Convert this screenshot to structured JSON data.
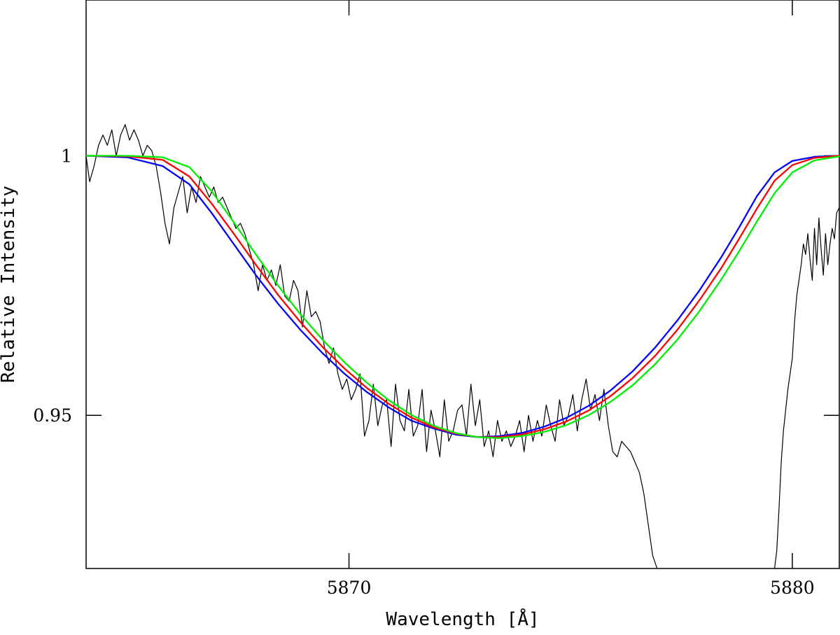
{
  "chart_data": {
    "type": "line",
    "title": "",
    "xlabel": "Wavelength [Å]",
    "ylabel": "Relative Intensity",
    "xlim": [
      5864.07,
      5881.06
    ],
    "ylim": [
      0.9205,
      1.03
    ],
    "x_ticks": [
      {
        "value": 5870,
        "label": "5870"
      },
      {
        "value": 5880,
        "label": "5880"
      }
    ],
    "y_ticks": [
      {
        "value": 1.0,
        "label": "1"
      },
      {
        "value": 0.95,
        "label": "0.95"
      }
    ],
    "grid": false,
    "legend": "none",
    "series": [
      {
        "color": "#000000",
        "line_width": 1.2,
        "points": [
          [
            5864.07,
            1.0
          ],
          [
            5864.15,
            0.995
          ],
          [
            5864.25,
            0.998
          ],
          [
            5864.35,
            1.002
          ],
          [
            5864.45,
            1.004
          ],
          [
            5864.55,
            1.002
          ],
          [
            5864.65,
            1.005
          ],
          [
            5864.75,
            1.0
          ],
          [
            5864.85,
            1.004
          ],
          [
            5864.95,
            1.006
          ],
          [
            5865.05,
            1.003
          ],
          [
            5865.15,
            1.005
          ],
          [
            5865.25,
            1.003
          ],
          [
            5865.35,
            1.0
          ],
          [
            5865.45,
            1.002
          ],
          [
            5865.55,
            1.001
          ],
          [
            5865.65,
            0.998
          ],
          [
            5865.75,
            0.993
          ],
          [
            5865.85,
            0.987
          ],
          [
            5865.95,
            0.983
          ],
          [
            5866.05,
            0.99
          ],
          [
            5866.15,
            0.993
          ],
          [
            5866.25,
            0.996
          ],
          [
            5866.35,
            0.989
          ],
          [
            5866.45,
            0.994
          ],
          [
            5866.55,
            0.991
          ],
          [
            5866.65,
            0.996
          ],
          [
            5866.75,
            0.994
          ],
          [
            5866.85,
            0.992
          ],
          [
            5866.95,
            0.994
          ],
          [
            5867.05,
            0.991
          ],
          [
            5867.15,
            0.992
          ],
          [
            5867.25,
            0.99
          ],
          [
            5867.35,
            0.988
          ],
          [
            5867.45,
            0.986
          ],
          [
            5867.55,
            0.987
          ],
          [
            5867.65,
            0.985
          ],
          [
            5867.75,
            0.982
          ],
          [
            5867.85,
            0.979
          ],
          [
            5867.95,
            0.974
          ],
          [
            5868.05,
            0.979
          ],
          [
            5868.15,
            0.976
          ],
          [
            5868.25,
            0.978
          ],
          [
            5868.35,
            0.975
          ],
          [
            5868.45,
            0.979
          ],
          [
            5868.55,
            0.973
          ],
          [
            5868.65,
            0.972
          ],
          [
            5868.75,
            0.976
          ],
          [
            5868.85,
            0.974
          ],
          [
            5868.95,
            0.967
          ],
          [
            5869.05,
            0.974
          ],
          [
            5869.15,
            0.969
          ],
          [
            5869.25,
            0.97
          ],
          [
            5869.35,
            0.968
          ],
          [
            5869.45,
            0.963
          ],
          [
            5869.55,
            0.96
          ],
          [
            5869.65,
            0.963
          ],
          [
            5869.75,
            0.958
          ],
          [
            5869.85,
            0.955
          ],
          [
            5869.95,
            0.957
          ],
          [
            5870.05,
            0.953
          ],
          [
            5870.15,
            0.955
          ],
          [
            5870.25,
            0.958
          ],
          [
            5870.35,
            0.946
          ],
          [
            5870.45,
            0.949
          ],
          [
            5870.55,
            0.956
          ],
          [
            5870.65,
            0.948
          ],
          [
            5870.75,
            0.952
          ],
          [
            5870.85,
            0.953
          ],
          [
            5870.95,
            0.944
          ],
          [
            5871.05,
            0.956
          ],
          [
            5871.15,
            0.949
          ],
          [
            5871.25,
            0.947
          ],
          [
            5871.35,
            0.955
          ],
          [
            5871.45,
            0.946
          ],
          [
            5871.55,
            0.948
          ],
          [
            5871.65,
            0.955
          ],
          [
            5871.75,
            0.943
          ],
          [
            5871.85,
            0.951
          ],
          [
            5871.95,
            0.947
          ],
          [
            5872.05,
            0.942
          ],
          [
            5872.15,
            0.953
          ],
          [
            5872.25,
            0.945
          ],
          [
            5872.35,
            0.947
          ],
          [
            5872.45,
            0.951
          ],
          [
            5872.55,
            0.952
          ],
          [
            5872.65,
            0.946
          ],
          [
            5872.75,
            0.956
          ],
          [
            5872.85,
            0.948
          ],
          [
            5872.95,
            0.953
          ],
          [
            5873.05,
            0.944
          ],
          [
            5873.15,
            0.947
          ],
          [
            5873.25,
            0.942
          ],
          [
            5873.35,
            0.949
          ],
          [
            5873.45,
            0.945
          ],
          [
            5873.55,
            0.947
          ],
          [
            5873.65,
            0.944
          ],
          [
            5873.75,
            0.946
          ],
          [
            5873.85,
            0.949
          ],
          [
            5873.95,
            0.943
          ],
          [
            5874.05,
            0.95
          ],
          [
            5874.15,
            0.945
          ],
          [
            5874.25,
            0.949
          ],
          [
            5874.35,
            0.946
          ],
          [
            5874.45,
            0.952
          ],
          [
            5874.55,
            0.948
          ],
          [
            5874.65,
            0.945
          ],
          [
            5874.75,
            0.953
          ],
          [
            5874.85,
            0.948
          ],
          [
            5874.95,
            0.95
          ],
          [
            5875.05,
            0.954
          ],
          [
            5875.15,
            0.947
          ],
          [
            5875.25,
            0.953
          ],
          [
            5875.35,
            0.957
          ],
          [
            5875.45,
            0.951
          ],
          [
            5875.55,
            0.954
          ],
          [
            5875.65,
            0.949
          ],
          [
            5875.75,
            0.955
          ],
          [
            5875.85,
            0.948
          ],
          [
            5875.95,
            0.943
          ],
          [
            5876.05,
            0.942
          ],
          [
            5876.15,
            0.945
          ],
          [
            5876.25,
            0.944
          ],
          [
            5876.35,
            0.943
          ],
          [
            5876.45,
            0.941
          ],
          [
            5876.55,
            0.939
          ],
          [
            5876.65,
            0.935
          ],
          [
            5876.75,
            0.929
          ],
          [
            5876.85,
            0.923
          ],
          [
            5876.95,
            0.9205
          ]
        ]
      },
      {
        "color": "#000000",
        "line_width": 1.2,
        "points": [
          [
            5879.6,
            0.9205
          ],
          [
            5879.65,
            0.924
          ],
          [
            5879.7,
            0.932
          ],
          [
            5879.75,
            0.941
          ],
          [
            5879.8,
            0.947
          ],
          [
            5879.85,
            0.951
          ],
          [
            5879.9,
            0.955
          ],
          [
            5879.95,
            0.958
          ],
          [
            5880.0,
            0.961
          ],
          [
            5880.05,
            0.968
          ],
          [
            5880.1,
            0.973
          ],
          [
            5880.15,
            0.976
          ],
          [
            5880.2,
            0.979
          ],
          [
            5880.25,
            0.983
          ],
          [
            5880.3,
            0.981
          ],
          [
            5880.35,
            0.985
          ],
          [
            5880.4,
            0.98
          ],
          [
            5880.45,
            0.976
          ],
          [
            5880.5,
            0.986
          ],
          [
            5880.55,
            0.979
          ],
          [
            5880.6,
            0.988
          ],
          [
            5880.65,
            0.982
          ],
          [
            5880.7,
            0.977
          ],
          [
            5880.75,
            0.985
          ],
          [
            5880.8,
            0.979
          ],
          [
            5880.85,
            0.983
          ],
          [
            5880.9,
            0.986
          ],
          [
            5880.95,
            0.984
          ],
          [
            5881.0,
            0.989
          ],
          [
            5881.06,
            0.99
          ]
        ]
      },
      {
        "color": "#0000ff",
        "line_width": 2.3,
        "points": [
          [
            5864.07,
            1.0
          ],
          [
            5865.0,
            0.9997
          ],
          [
            5865.8,
            0.998
          ],
          [
            5866.4,
            0.9945
          ],
          [
            5866.9,
            0.989
          ],
          [
            5867.4,
            0.983
          ],
          [
            5867.9,
            0.977
          ],
          [
            5868.4,
            0.9715
          ],
          [
            5868.9,
            0.9665
          ],
          [
            5869.4,
            0.962
          ],
          [
            5869.9,
            0.958
          ],
          [
            5870.4,
            0.9545
          ],
          [
            5870.9,
            0.9515
          ],
          [
            5871.4,
            0.949
          ],
          [
            5871.9,
            0.9475
          ],
          [
            5872.4,
            0.9463
          ],
          [
            5872.9,
            0.9458
          ],
          [
            5873.4,
            0.946
          ],
          [
            5873.9,
            0.9466
          ],
          [
            5874.4,
            0.9478
          ],
          [
            5874.9,
            0.9495
          ],
          [
            5875.4,
            0.9518
          ],
          [
            5875.9,
            0.9548
          ],
          [
            5876.4,
            0.9585
          ],
          [
            5876.9,
            0.963
          ],
          [
            5877.4,
            0.9682
          ],
          [
            5877.9,
            0.974
          ],
          [
            5878.4,
            0.9805
          ],
          [
            5878.8,
            0.9862
          ],
          [
            5879.2,
            0.9922
          ],
          [
            5879.6,
            0.9968
          ],
          [
            5880.0,
            0.999
          ],
          [
            5880.5,
            0.9998
          ],
          [
            5881.06,
            1.0
          ]
        ]
      },
      {
        "color": "#ff0000",
        "line_width": 2.3,
        "points": [
          [
            5864.07,
            1.0
          ],
          [
            5865.0,
            0.9999
          ],
          [
            5865.8,
            0.9992
          ],
          [
            5866.4,
            0.996
          ],
          [
            5866.9,
            0.9908
          ],
          [
            5867.4,
            0.985
          ],
          [
            5867.9,
            0.979
          ],
          [
            5868.4,
            0.9732
          ],
          [
            5868.9,
            0.968
          ],
          [
            5869.4,
            0.9632
          ],
          [
            5869.9,
            0.959
          ],
          [
            5870.4,
            0.9553
          ],
          [
            5870.9,
            0.9522
          ],
          [
            5871.4,
            0.9496
          ],
          [
            5871.9,
            0.9477
          ],
          [
            5872.4,
            0.9465
          ],
          [
            5872.9,
            0.9458
          ],
          [
            5873.4,
            0.9458
          ],
          [
            5873.9,
            0.9463
          ],
          [
            5874.4,
            0.9473
          ],
          [
            5874.9,
            0.9488
          ],
          [
            5875.4,
            0.9509
          ],
          [
            5875.9,
            0.9537
          ],
          [
            5876.4,
            0.9572
          ],
          [
            5876.9,
            0.9614
          ],
          [
            5877.4,
            0.9664
          ],
          [
            5877.9,
            0.9721
          ],
          [
            5878.4,
            0.9784
          ],
          [
            5878.8,
            0.984
          ],
          [
            5879.2,
            0.9898
          ],
          [
            5879.6,
            0.9952
          ],
          [
            5880.0,
            0.9982
          ],
          [
            5880.5,
            0.9996
          ],
          [
            5881.06,
            1.0
          ]
        ]
      },
      {
        "color": "#00ee00",
        "line_width": 2.3,
        "points": [
          [
            5864.07,
            1.0
          ],
          [
            5865.0,
            1.0
          ],
          [
            5865.8,
            0.9997
          ],
          [
            5866.4,
            0.9978
          ],
          [
            5866.9,
            0.9932
          ],
          [
            5867.4,
            0.9872
          ],
          [
            5867.9,
            0.981
          ],
          [
            5868.4,
            0.975
          ],
          [
            5868.9,
            0.9695
          ],
          [
            5869.4,
            0.9646
          ],
          [
            5869.9,
            0.9602
          ],
          [
            5870.4,
            0.9563
          ],
          [
            5870.9,
            0.9529
          ],
          [
            5871.4,
            0.9501
          ],
          [
            5871.9,
            0.948
          ],
          [
            5872.4,
            0.9466
          ],
          [
            5872.9,
            0.9458
          ],
          [
            5873.4,
            0.9456
          ],
          [
            5873.9,
            0.946
          ],
          [
            5874.4,
            0.9468
          ],
          [
            5874.9,
            0.9481
          ],
          [
            5875.4,
            0.95
          ],
          [
            5875.9,
            0.9526
          ],
          [
            5876.4,
            0.9558
          ],
          [
            5876.9,
            0.9598
          ],
          [
            5877.4,
            0.9645
          ],
          [
            5877.9,
            0.97
          ],
          [
            5878.4,
            0.9762
          ],
          [
            5878.8,
            0.9816
          ],
          [
            5879.2,
            0.9873
          ],
          [
            5879.6,
            0.9928
          ],
          [
            5880.0,
            0.9968
          ],
          [
            5880.5,
            0.9991
          ],
          [
            5881.06,
            0.9999
          ]
        ]
      }
    ]
  }
}
